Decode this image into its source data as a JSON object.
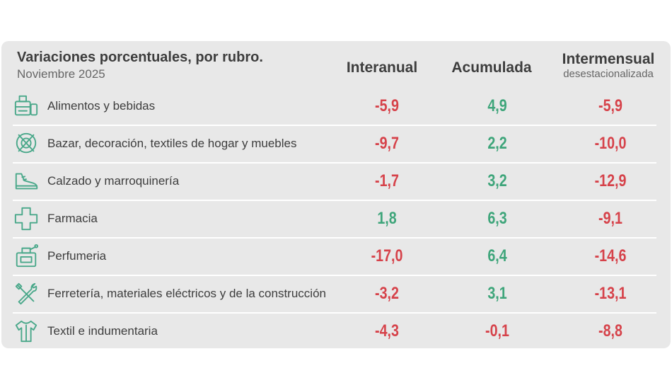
{
  "title": "Variaciones porcentuales, por rubro.",
  "subtitle": "Noviembre 2025",
  "colors": {
    "negative": "#d6424a",
    "positive": "#3ea57a",
    "icon": "#4aa88a"
  },
  "chart_data": {
    "type": "table",
    "title": "Variaciones porcentuales, por rubro.",
    "subtitle": "Noviembre 2025",
    "columns": [
      {
        "label": "Interanual",
        "sublabel": ""
      },
      {
        "label": "Acumulada",
        "sublabel": ""
      },
      {
        "label": "Intermensual",
        "sublabel": "desestacionalizada"
      }
    ],
    "rows": [
      {
        "label": "Alimentos y bebidas",
        "icon": "grocery-icon",
        "values": [
          "-5,9",
          "4,9",
          "-5,9"
        ]
      },
      {
        "label": "Bazar, decoración, textiles de hogar y muebles",
        "icon": "home-goods-icon",
        "values": [
          "-9,7",
          "2,2",
          "-10,0"
        ]
      },
      {
        "label": "Calzado y marroquinería",
        "icon": "shoe-icon",
        "values": [
          "-1,7",
          "3,2",
          "-12,9"
        ]
      },
      {
        "label": "Farmacia",
        "icon": "pharmacy-cross-icon",
        "values": [
          "1,8",
          "6,3",
          "-9,1"
        ]
      },
      {
        "label": "Perfumeria",
        "icon": "perfume-icon",
        "values": [
          "-17,0",
          "6,4",
          "-14,6"
        ]
      },
      {
        "label": "Ferretería, materiales eléctricos y de la construcción",
        "icon": "tools-icon",
        "values": [
          "-3,2",
          "3,1",
          "-13,1"
        ]
      },
      {
        "label": "Textil e indumentaria",
        "icon": "shirt-icon",
        "values": [
          "-4,3",
          "-0,1",
          "-8,8"
        ]
      }
    ]
  }
}
